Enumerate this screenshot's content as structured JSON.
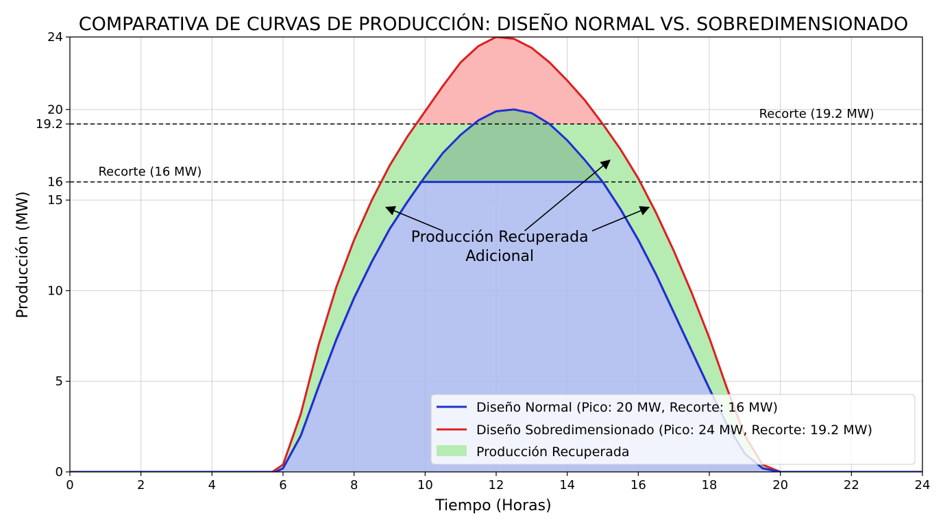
{
  "chart_data": {
    "type": "area",
    "title": "COMPARATIVA DE CURVAS DE PRODUCCIÓN: DISEÑO NORMAL VS. SOBREDIMENSIONADO",
    "xlabel": "Tiempo (Horas)",
    "ylabel": "Producción (MW)",
    "xlim": [
      0,
      24
    ],
    "ylim": [
      0,
      24
    ],
    "xticks": [
      0,
      2,
      4,
      6,
      8,
      10,
      12,
      14,
      16,
      18,
      20,
      22,
      24
    ],
    "yticks": [
      0,
      5,
      10,
      15,
      16,
      19.2,
      20,
      24
    ],
    "grid": true,
    "legend_position": "bottom-right",
    "series": [
      {
        "name": "Diseño Normal (Pico: 20 MW, Recorte: 16 MW)",
        "color": "#1f2fd0",
        "fill": "#aab9ee",
        "peak": 20,
        "clip": 16,
        "x": [
          0,
          5.8,
          6,
          6.5,
          7,
          7.5,
          8,
          8.5,
          9,
          9.5,
          10,
          10.5,
          11,
          11.5,
          12,
          12.5,
          13,
          13.5,
          14,
          14.5,
          15,
          15.5,
          16,
          16.5,
          17,
          17.5,
          18,
          18.5,
          19,
          19.5,
          20,
          24
        ],
        "raw": [
          0,
          0,
          0.2,
          2.0,
          4.7,
          7.3,
          9.6,
          11.6,
          13.4,
          14.9,
          16.3,
          17.6,
          18.6,
          19.4,
          19.9,
          20.0,
          19.8,
          19.2,
          18.3,
          17.2,
          16.0,
          14.5,
          12.8,
          10.9,
          8.8,
          6.7,
          4.6,
          2.6,
          1.0,
          0.2,
          0,
          0
        ]
      },
      {
        "name": "Diseño Sobredimensionado (Pico: 24 MW, Recorte: 19.2 MW)",
        "color": "#dd1f1f",
        "fill": "#fbb6b6",
        "peak": 24,
        "clip": 19.2,
        "x": [
          0,
          5.7,
          6,
          6.5,
          7,
          7.5,
          8,
          8.5,
          9,
          9.5,
          10,
          10.5,
          11,
          11.5,
          12,
          12.5,
          13,
          13.5,
          14,
          14.5,
          15,
          15.5,
          16,
          16.5,
          17,
          17.5,
          18,
          18.5,
          19,
          19.5,
          20,
          24
        ],
        "raw": [
          0,
          0,
          0.4,
          3.2,
          7.0,
          10.2,
          12.8,
          15.0,
          16.9,
          18.5,
          19.9,
          21.3,
          22.6,
          23.5,
          24.0,
          23.9,
          23.4,
          22.6,
          21.6,
          20.5,
          19.2,
          17.8,
          16.2,
          14.3,
          12.2,
          9.9,
          7.4,
          4.6,
          2.0,
          0.4,
          0,
          0
        ]
      }
    ],
    "recovered": {
      "name": "Producción Recuperada",
      "color": "#b6ebb2"
    },
    "clip_lines": [
      {
        "value": 16,
        "label": "Recorte (16 MW)",
        "label_x": 0.8
      },
      {
        "value": 19.2,
        "label": "Recorte (19.2 MW)",
        "label_x": 19.4
      }
    ],
    "annotation": {
      "line1": "Producción Recuperada",
      "line2": "Adicional",
      "text_x": 12.1,
      "text_y": 12.7,
      "arrows": [
        {
          "from": [
            10.5,
            13.3
          ],
          "to": [
            8.9,
            14.6
          ]
        },
        {
          "from": [
            12.8,
            13.3
          ],
          "to": [
            15.2,
            17.2
          ]
        },
        {
          "from": [
            14.7,
            13.3
          ],
          "to": [
            16.3,
            14.6
          ]
        }
      ]
    }
  }
}
